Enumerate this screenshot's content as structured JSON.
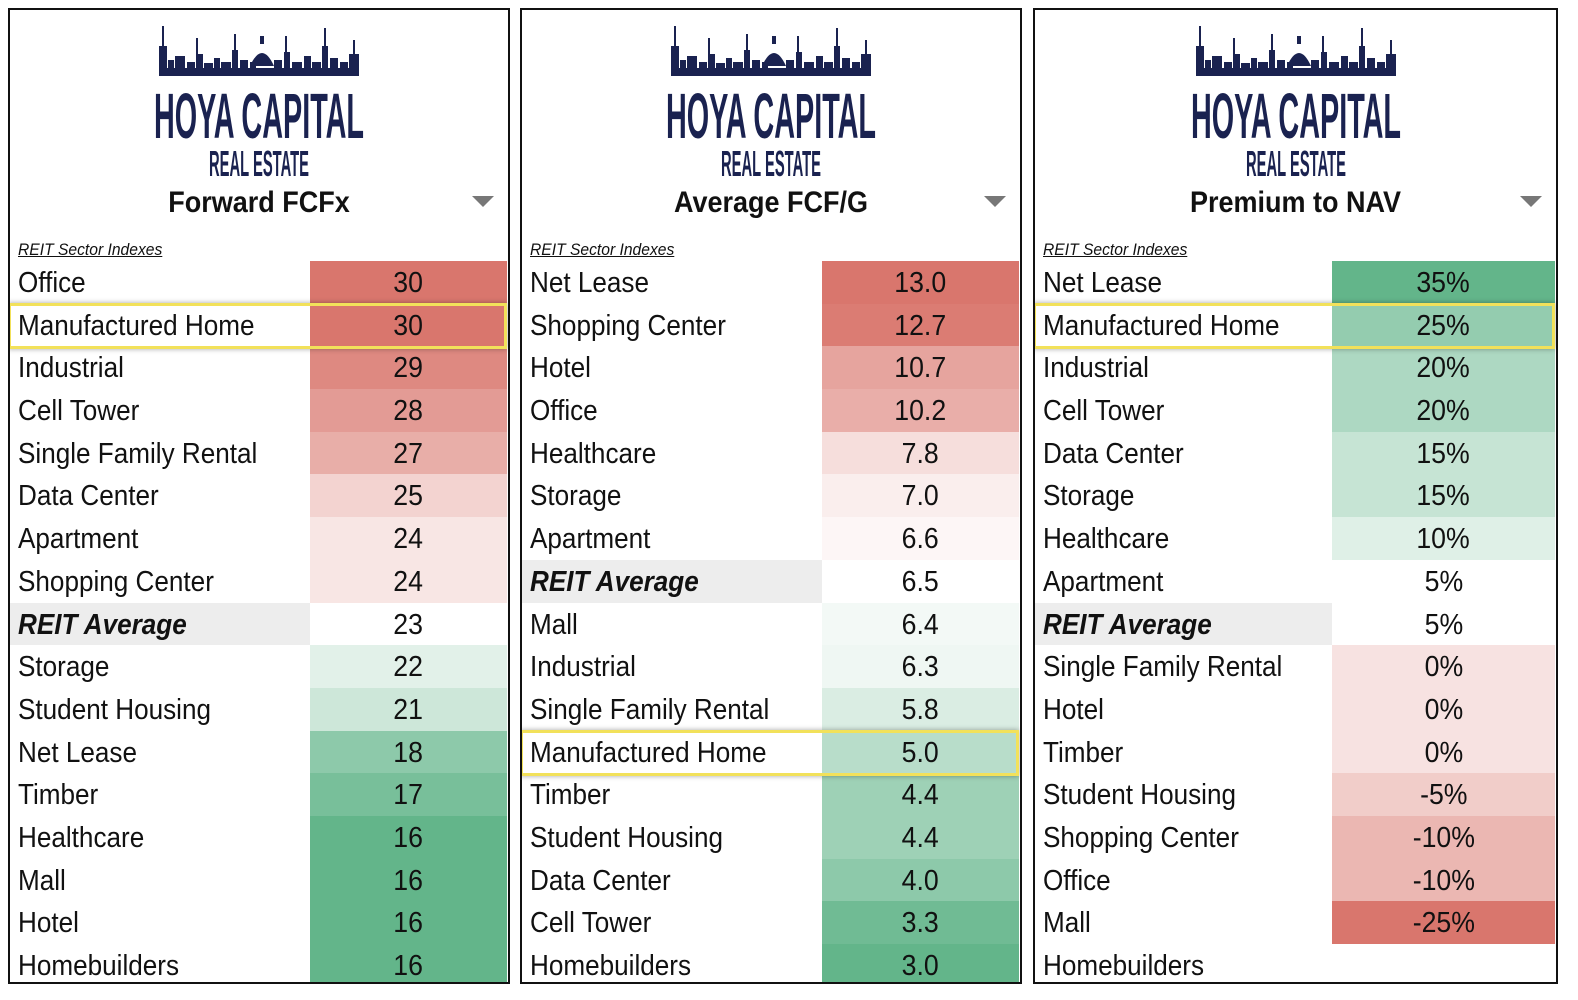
{
  "brand": {
    "logo_line1": "HOYA CAPITAL",
    "logo_line2": "REAL ESTATE",
    "color": "#1a2250"
  },
  "dropdown_icon": "triangle-down-icon",
  "highlight_color": "#f2e15a",
  "scale_colors": {
    "high": "#d9766d",
    "mid": "#ffffff",
    "low": "#63b58a"
  },
  "chart_data": [
    {
      "type": "table",
      "title": "Forward FCFx",
      "subtitle": "REIT Sector Indexes",
      "color_direction": "higher-is-red",
      "highlighted": "Manufactured Home",
      "rows": [
        {
          "label": "Office",
          "value": "30"
        },
        {
          "label": "Manufactured Home",
          "value": "30"
        },
        {
          "label": "Industrial",
          "value": "29"
        },
        {
          "label": "Cell Tower",
          "value": "28"
        },
        {
          "label": "Single Family Rental",
          "value": "27"
        },
        {
          "label": "Data Center",
          "value": "25"
        },
        {
          "label": "Apartment",
          "value": "24"
        },
        {
          "label": "Shopping Center",
          "value": "24"
        },
        {
          "label": "REIT Average",
          "value": "23",
          "average": true
        },
        {
          "label": "Storage",
          "value": "22"
        },
        {
          "label": "Student Housing",
          "value": "21"
        },
        {
          "label": "Net Lease",
          "value": "18"
        },
        {
          "label": "Timber",
          "value": "17"
        },
        {
          "label": "Healthcare",
          "value": "16"
        },
        {
          "label": "Mall",
          "value": "16"
        },
        {
          "label": "Hotel",
          "value": "16"
        },
        {
          "label": "Homebuilders",
          "value": "16"
        }
      ]
    },
    {
      "type": "table",
      "title": "Average FCF/G",
      "subtitle": "REIT Sector Indexes",
      "color_direction": "higher-is-red",
      "highlighted": "Manufactured Home",
      "rows": [
        {
          "label": "Net Lease",
          "value": "13.0"
        },
        {
          "label": "Shopping Center",
          "value": "12.7"
        },
        {
          "label": "Hotel",
          "value": "10.7"
        },
        {
          "label": "Office",
          "value": "10.2"
        },
        {
          "label": "Healthcare",
          "value": "7.8"
        },
        {
          "label": "Storage",
          "value": "7.0"
        },
        {
          "label": "Apartment",
          "value": "6.6"
        },
        {
          "label": "REIT Average",
          "value": "6.5",
          "average": true
        },
        {
          "label": "Mall",
          "value": "6.4"
        },
        {
          "label": "Industrial",
          "value": "6.3"
        },
        {
          "label": "Single Family Rental",
          "value": "5.8"
        },
        {
          "label": "Manufactured Home",
          "value": "5.0"
        },
        {
          "label": "Timber",
          "value": "4.4"
        },
        {
          "label": "Student Housing",
          "value": "4.4"
        },
        {
          "label": "Data Center",
          "value": "4.0"
        },
        {
          "label": "Cell Tower",
          "value": "3.3"
        },
        {
          "label": "Homebuilders",
          "value": "3.0"
        }
      ]
    },
    {
      "type": "table",
      "title": "Premium to NAV",
      "subtitle": "REIT Sector Indexes",
      "color_direction": "higher-is-green",
      "highlighted": "Manufactured Home",
      "rows": [
        {
          "label": "Net Lease",
          "value": "35%"
        },
        {
          "label": "Manufactured Home",
          "value": "25%"
        },
        {
          "label": "Industrial",
          "value": "20%"
        },
        {
          "label": "Cell Tower",
          "value": "20%"
        },
        {
          "label": "Data Center",
          "value": "15%"
        },
        {
          "label": "Storage",
          "value": "15%"
        },
        {
          "label": "Healthcare",
          "value": "10%"
        },
        {
          "label": "Apartment",
          "value": "5%"
        },
        {
          "label": "REIT Average",
          "value": "5%",
          "average": true
        },
        {
          "label": "Single Family Rental",
          "value": "0%"
        },
        {
          "label": "Hotel",
          "value": "0%"
        },
        {
          "label": "Timber",
          "value": "0%"
        },
        {
          "label": "Student Housing",
          "value": "-5%"
        },
        {
          "label": "Shopping Center",
          "value": "-10%"
        },
        {
          "label": "Office",
          "value": "-10%"
        },
        {
          "label": "Mall",
          "value": "-25%"
        },
        {
          "label": "Homebuilders",
          "value": ""
        }
      ]
    }
  ]
}
